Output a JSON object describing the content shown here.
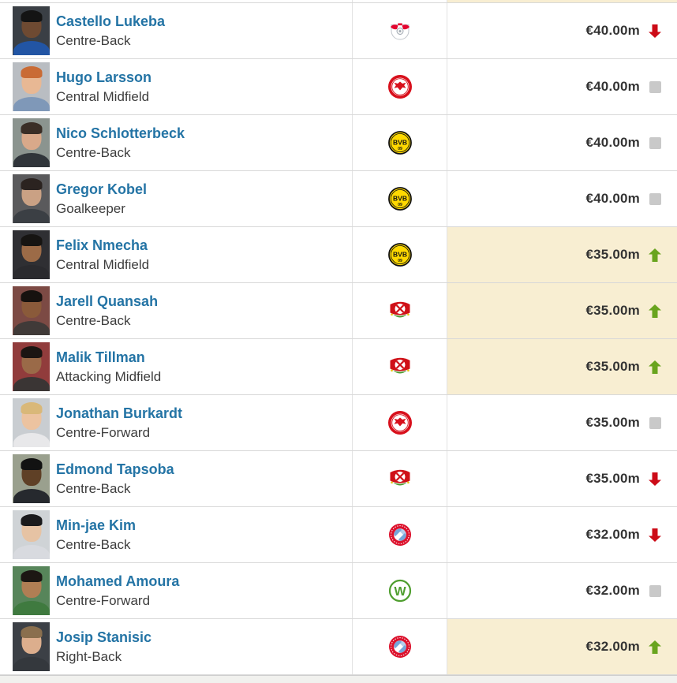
{
  "table": {
    "name": "player-market-value-list",
    "columns": [
      "player",
      "club",
      "market_value"
    ],
    "link_color": "#2474a5",
    "value_highlight_color": "#f8eed2",
    "trend_colors": {
      "up": "#69a41e",
      "down": "#cc0b17",
      "same": "#c9c9c9"
    },
    "top_partial_row": {
      "value_cell_highlighted": true
    },
    "rows": [
      {
        "name": "Castello Lukeba",
        "position": "Centre-Back",
        "club": "RB Leipzig",
        "club_icon": "rb-leipzig-crest",
        "value": "€40.00m",
        "trend": "down",
        "highlighted": false,
        "avatar": {
          "bg": "#3a3f45",
          "hair": "#141414",
          "skin": "#6e4a32",
          "shirt": "#2255a4"
        }
      },
      {
        "name": "Hugo Larsson",
        "position": "Central Midfield",
        "club": "Eintracht Frankfurt",
        "club_icon": "eintracht-frankfurt-crest",
        "value": "€40.00m",
        "trend": "same",
        "highlighted": false,
        "avatar": {
          "bg": "#b9bdc2",
          "hair": "#c96b35",
          "skin": "#e8b894",
          "shirt": "#7f98b8"
        }
      },
      {
        "name": "Nico Schlotterbeck",
        "position": "Centre-Back",
        "club": "Borussia Dortmund",
        "club_icon": "borussia-dortmund-crest",
        "value": "€40.00m",
        "trend": "same",
        "highlighted": false,
        "avatar": {
          "bg": "#8b948f",
          "hair": "#3a2e26",
          "skin": "#d9a98a",
          "shirt": "#30353a"
        }
      },
      {
        "name": "Gregor Kobel",
        "position": "Goalkeeper",
        "club": "Borussia Dortmund",
        "club_icon": "borussia-dortmund-crest",
        "value": "€40.00m",
        "trend": "same",
        "highlighted": false,
        "avatar": {
          "bg": "#5a5a5c",
          "hair": "#2b2320",
          "skin": "#caa184",
          "shirt": "#3b3f44"
        }
      },
      {
        "name": "Felix Nmecha",
        "position": "Central Midfield",
        "club": "Borussia Dortmund",
        "club_icon": "borussia-dortmund-crest",
        "value": "€35.00m",
        "trend": "up",
        "highlighted": true,
        "avatar": {
          "bg": "#2f2f33",
          "hair": "#161412",
          "skin": "#9c6b47",
          "shirt": "#2a2a2e"
        }
      },
      {
        "name": "Jarell Quansah",
        "position": "Centre-Back",
        "club": "Bayer 04 Leverkusen",
        "club_icon": "bayer-leverkusen-crest",
        "value": "€35.00m",
        "trend": "up",
        "highlighted": true,
        "avatar": {
          "bg": "#7c4a44",
          "hair": "#17120f",
          "skin": "#8a5a3a",
          "shirt": "#403a38"
        }
      },
      {
        "name": "Malik Tillman",
        "position": "Attacking Midfield",
        "club": "Bayer 04 Leverkusen",
        "club_icon": "bayer-leverkusen-crest",
        "value": "€35.00m",
        "trend": "up",
        "highlighted": true,
        "avatar": {
          "bg": "#913c3c",
          "hair": "#1b1512",
          "skin": "#9a6a48",
          "shirt": "#3a3534"
        }
      },
      {
        "name": "Jonathan Burkardt",
        "position": "Centre-Forward",
        "club": "Eintracht Frankfurt",
        "club_icon": "eintracht-frankfurt-crest",
        "value": "€35.00m",
        "trend": "same",
        "highlighted": false,
        "avatar": {
          "bg": "#c9cdd1",
          "hair": "#d9b879",
          "skin": "#ecc3a0",
          "shirt": "#e8e8ea"
        }
      },
      {
        "name": "Edmond Tapsoba",
        "position": "Centre-Back",
        "club": "Bayer 04 Leverkusen",
        "club_icon": "bayer-leverkusen-crest",
        "value": "€35.00m",
        "trend": "down",
        "highlighted": false,
        "avatar": {
          "bg": "#9aa08e",
          "hair": "#121212",
          "skin": "#5f4026",
          "shirt": "#26292e"
        }
      },
      {
        "name": "Min-jae Kim",
        "position": "Centre-Back",
        "club": "Bayern Munich",
        "club_icon": "bayern-munich-crest",
        "value": "€32.00m",
        "trend": "down",
        "highlighted": false,
        "avatar": {
          "bg": "#cfd3d6",
          "hair": "#1a1a1c",
          "skin": "#e6c3a4",
          "shirt": "#d8dadf"
        }
      },
      {
        "name": "Mohamed Amoura",
        "position": "Centre-Forward",
        "club": "VfL Wolfsburg",
        "club_icon": "wolfsburg-crest",
        "value": "€32.00m",
        "trend": "same",
        "highlighted": false,
        "avatar": {
          "bg": "#57855a",
          "hair": "#1c1713",
          "skin": "#b07e54",
          "shirt": "#3f7a3f"
        }
      },
      {
        "name": "Josip Stanisic",
        "position": "Right-Back",
        "club": "Bayern Munich",
        "club_icon": "bayern-munich-crest",
        "value": "€32.00m",
        "trend": "up",
        "highlighted": true,
        "avatar": {
          "bg": "#3c4046",
          "hair": "#8a6f4e",
          "skin": "#dcae8d",
          "shirt": "#34383d"
        }
      }
    ]
  }
}
